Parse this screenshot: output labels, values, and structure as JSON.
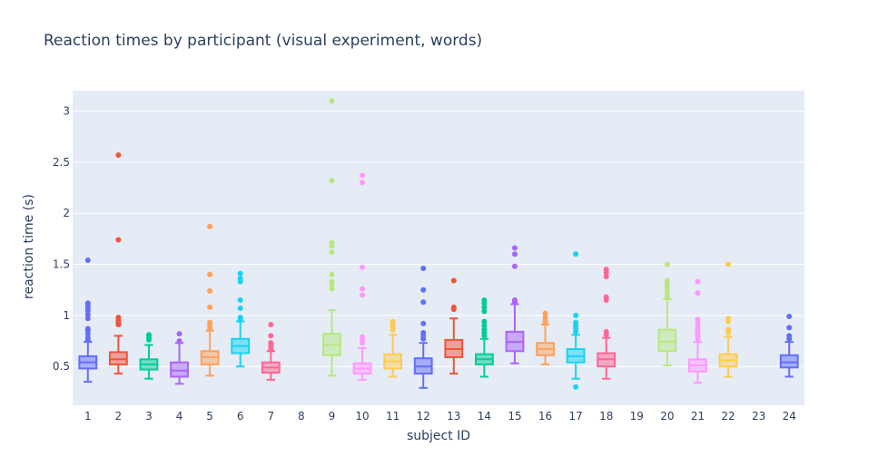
{
  "chart_data": {
    "type": "box",
    "title": "Reaction times by participant (visual experiment,  words)",
    "xlabel": "subject ID",
    "ylabel": "reaction time (s)",
    "categories": [
      "1",
      "2",
      "3",
      "4",
      "5",
      "6",
      "7",
      "8",
      "9",
      "10",
      "11",
      "12",
      "13",
      "14",
      "15",
      "16",
      "17",
      "18",
      "19",
      "20",
      "21",
      "22",
      "23",
      "24"
    ],
    "ylim": [
      0.12,
      3.2
    ],
    "yticks": [
      0.5,
      1,
      1.5,
      2,
      2.5,
      3
    ],
    "ytick_labels": [
      "0.5",
      "1",
      "1.5",
      "2",
      "2.5",
      "3"
    ],
    "grid": true,
    "plot_background": "#e5ecf6",
    "series": [
      {
        "x": "1",
        "color": "#636efa",
        "min": 0.35,
        "q1": 0.48,
        "median": 0.54,
        "q3": 0.6,
        "max": 0.74,
        "outliers": [
          0.76,
          0.78,
          0.82,
          0.85,
          0.87,
          0.97,
          1.01,
          1.05,
          1.08,
          1.1,
          1.12,
          1.54
        ]
      },
      {
        "x": "2",
        "color": "#ef553b",
        "min": 0.43,
        "q1": 0.52,
        "median": 0.57,
        "q3": 0.64,
        "max": 0.8,
        "outliers": [
          0.91,
          0.93,
          0.95,
          0.98,
          1.74,
          2.57
        ]
      },
      {
        "x": "3",
        "color": "#00cc96",
        "min": 0.38,
        "q1": 0.47,
        "median": 0.52,
        "q3": 0.57,
        "max": 0.71,
        "outliers": [
          0.76,
          0.78,
          0.8,
          0.81
        ]
      },
      {
        "x": "4",
        "color": "#ab63fa",
        "min": 0.33,
        "q1": 0.4,
        "median": 0.46,
        "q3": 0.54,
        "max": 0.73,
        "outliers": [
          0.75,
          0.82
        ]
      },
      {
        "x": "5",
        "color": "#ffa15a",
        "min": 0.41,
        "q1": 0.52,
        "median": 0.59,
        "q3": 0.65,
        "max": 0.85,
        "outliers": [
          0.87,
          0.9,
          0.93,
          1.08,
          1.24,
          1.4,
          1.87
        ]
      },
      {
        "x": "6",
        "color": "#19d3f3",
        "min": 0.5,
        "q1": 0.63,
        "median": 0.7,
        "q3": 0.77,
        "max": 0.94,
        "outliers": [
          0.96,
          0.98,
          1.07,
          1.15,
          1.33,
          1.36,
          1.41
        ]
      },
      {
        "x": "7",
        "color": "#ff6692",
        "min": 0.37,
        "q1": 0.44,
        "median": 0.49,
        "q3": 0.54,
        "max": 0.65,
        "outliers": [
          0.67,
          0.7,
          0.73,
          0.8,
          0.91
        ]
      },
      {
        "x": "9",
        "color": "#b6e880",
        "min": 0.41,
        "q1": 0.61,
        "median": 0.71,
        "q3": 0.82,
        "max": 1.05,
        "outliers": [
          1.26,
          1.3,
          1.33,
          1.4,
          1.62,
          1.68,
          1.71,
          2.32,
          3.1
        ]
      },
      {
        "x": "10",
        "color": "#ff97ff",
        "min": 0.37,
        "q1": 0.43,
        "median": 0.48,
        "q3": 0.53,
        "max": 0.68,
        "outliers": [
          0.73,
          0.76,
          0.79,
          1.2,
          1.26,
          1.47,
          2.3,
          2.37
        ]
      },
      {
        "x": "11",
        "color": "#fecb52",
        "min": 0.4,
        "q1": 0.48,
        "median": 0.55,
        "q3": 0.62,
        "max": 0.81,
        "outliers": [
          0.86,
          0.89,
          0.92,
          0.94
        ]
      },
      {
        "x": "12",
        "color": "#636efa",
        "min": 0.29,
        "q1": 0.43,
        "median": 0.5,
        "q3": 0.58,
        "max": 0.73,
        "outliers": [
          0.77,
          0.8,
          0.83,
          0.92,
          1.13,
          1.25,
          1.46
        ]
      },
      {
        "x": "13",
        "color": "#ef553b",
        "min": 0.43,
        "q1": 0.59,
        "median": 0.67,
        "q3": 0.76,
        "max": 0.97,
        "outliers": [
          1.06,
          1.08,
          1.34
        ]
      },
      {
        "x": "14",
        "color": "#00cc96",
        "min": 0.4,
        "q1": 0.52,
        "median": 0.57,
        "q3": 0.62,
        "max": 0.77,
        "outliers": [
          0.8,
          0.83,
          0.86,
          0.9,
          0.94,
          1.04,
          1.08,
          1.12,
          1.15
        ]
      },
      {
        "x": "15",
        "color": "#ab63fa",
        "min": 0.53,
        "q1": 0.65,
        "median": 0.74,
        "q3": 0.84,
        "max": 1.11,
        "outliers": [
          1.13,
          1.15,
          1.48,
          1.6,
          1.66
        ]
      },
      {
        "x": "16",
        "color": "#ffa15a",
        "min": 0.52,
        "q1": 0.61,
        "median": 0.67,
        "q3": 0.73,
        "max": 0.91,
        "outliers": [
          0.93,
          0.95,
          0.98,
          1.02
        ]
      },
      {
        "x": "17",
        "color": "#19d3f3",
        "min": 0.38,
        "q1": 0.54,
        "median": 0.6,
        "q3": 0.67,
        "max": 0.81,
        "outliers": [
          0.3,
          0.84,
          0.87,
          0.9,
          0.93,
          1.0,
          1.6
        ]
      },
      {
        "x": "18",
        "color": "#ff6692",
        "min": 0.38,
        "q1": 0.5,
        "median": 0.57,
        "q3": 0.63,
        "max": 0.78,
        "outliers": [
          0.81,
          0.84,
          1.15,
          1.18,
          1.38,
          1.42,
          1.45
        ]
      },
      {
        "x": "20",
        "color": "#b6e880",
        "min": 0.51,
        "q1": 0.65,
        "median": 0.74,
        "q3": 0.86,
        "max": 1.16,
        "outliers": [
          1.18,
          1.21,
          1.24,
          1.28,
          1.31,
          1.34,
          1.5
        ]
      },
      {
        "x": "21",
        "color": "#ff97ff",
        "min": 0.34,
        "q1": 0.45,
        "median": 0.51,
        "q3": 0.57,
        "max": 0.74,
        "outliers": [
          0.77,
          0.8,
          0.83,
          0.86,
          0.89,
          0.93,
          0.96,
          1.22,
          1.33
        ]
      },
      {
        "x": "22",
        "color": "#fecb52",
        "min": 0.4,
        "q1": 0.5,
        "median": 0.56,
        "q3": 0.62,
        "max": 0.79,
        "outliers": [
          0.83,
          0.86,
          0.94,
          0.97,
          1.5
        ]
      },
      {
        "x": "24",
        "color": "#636efa",
        "min": 0.4,
        "q1": 0.49,
        "median": 0.54,
        "q3": 0.61,
        "max": 0.74,
        "outliers": [
          0.77,
          0.8,
          0.88,
          0.99
        ]
      }
    ]
  }
}
